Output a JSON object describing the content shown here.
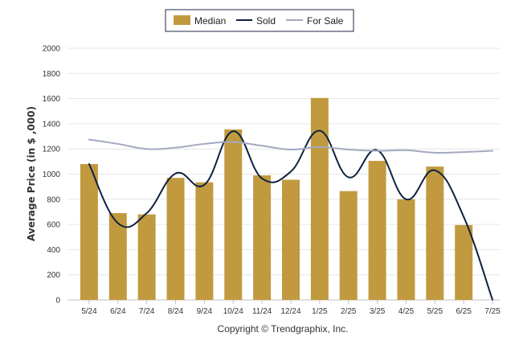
{
  "chart_data": {
    "type": "bar",
    "categories": [
      "5/24",
      "6/24",
      "7/24",
      "8/24",
      "9/24",
      "10/24",
      "11/24",
      "12/24",
      "1/25",
      "2/25",
      "3/25",
      "4/25",
      "5/25",
      "6/25",
      "7/25"
    ],
    "ylabel": "Average Price (in $ ,000)",
    "ylim": [
      0,
      2000
    ],
    "yticks": [
      "0",
      "200",
      "400",
      "600",
      "800",
      "1000",
      "1200",
      "1400",
      "1600",
      "1800",
      "2000"
    ],
    "grid": true,
    "legend_position": "top-center",
    "series": [
      {
        "name": "Median",
        "type": "bar",
        "color": "#c19a3f",
        "values": [
          1080,
          690,
          680,
          970,
          935,
          1355,
          990,
          955,
          1605,
          865,
          1105,
          800,
          1060,
          595,
          null
        ]
      },
      {
        "name": "Sold",
        "type": "line",
        "color": "#0e2240",
        "values": [
          1080,
          610,
          690,
          1005,
          915,
          1340,
          965,
          1020,
          1345,
          975,
          1190,
          800,
          1030,
          660,
          0
        ]
      },
      {
        "name": "For Sale",
        "type": "line",
        "color": "#a3a9c1",
        "values": [
          1275,
          1240,
          1200,
          1210,
          1240,
          1255,
          1225,
          1195,
          1215,
          1195,
          1185,
          1190,
          1170,
          1175,
          1185
        ]
      }
    ]
  },
  "legend": {
    "median_label": "Median",
    "sold_label": "Sold",
    "for_sale_label": "For Sale"
  },
  "footer": {
    "copyright": "Copyright © Trendgraphix, Inc."
  }
}
